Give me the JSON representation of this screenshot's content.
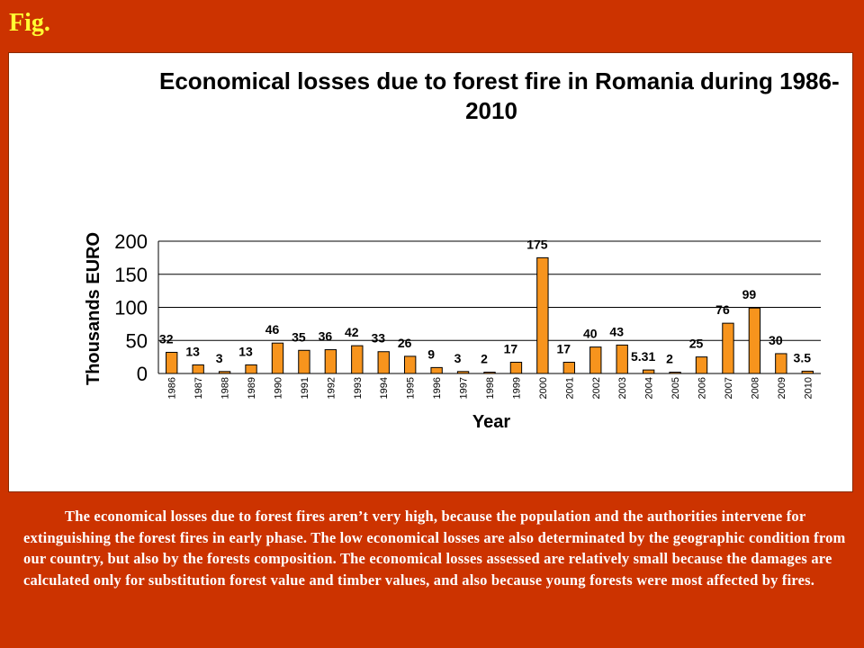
{
  "fig_label": "Fig.",
  "chart_data": {
    "type": "bar",
    "title_line1": "Economical losses due to forest fire in Romania during 1986-",
    "title_line2": "2010",
    "xlabel": "Year",
    "ylabel": "Thousands EURO",
    "ylim": [
      0,
      200
    ],
    "yticks": [
      0,
      50,
      100,
      150,
      200
    ],
    "grid": true,
    "bar_color": "#F7941D",
    "categories": [
      "1986",
      "1987",
      "1988",
      "1989",
      "1990",
      "1991",
      "1992",
      "1993",
      "1994",
      "1995",
      "1996",
      "1997",
      "1998",
      "1999",
      "2000",
      "2001",
      "2002",
      "2003",
      "2004",
      "2005",
      "2006",
      "2007",
      "2008",
      "2009",
      "2010"
    ],
    "values": [
      32,
      13,
      3,
      13,
      46,
      35,
      36,
      42,
      33,
      26,
      9,
      3,
      2,
      17,
      175,
      17,
      40,
      43,
      5.31,
      2,
      25,
      76,
      99,
      30,
      3.5
    ],
    "data_labels": [
      "32",
      "13",
      "3",
      "13",
      "46",
      "35",
      "36",
      "42",
      "33",
      "26",
      "9",
      "3",
      "2",
      "17",
      "175",
      "17",
      "40",
      "43",
      "5.31",
      "2",
      "25",
      "76",
      "99",
      "30",
      "3.5"
    ]
  },
  "caption": "The economical losses due to forest fires aren’t very high, because the population and the authorities intervene for extinguishing the forest fires in early phase. The low economical losses are also determinated  by the geographic condition from our country, but also by the forests composition. The economical losses assessed are relatively small because the damages are calculated only for substitution forest value and timber values, and also because young forests were most affected by fires."
}
